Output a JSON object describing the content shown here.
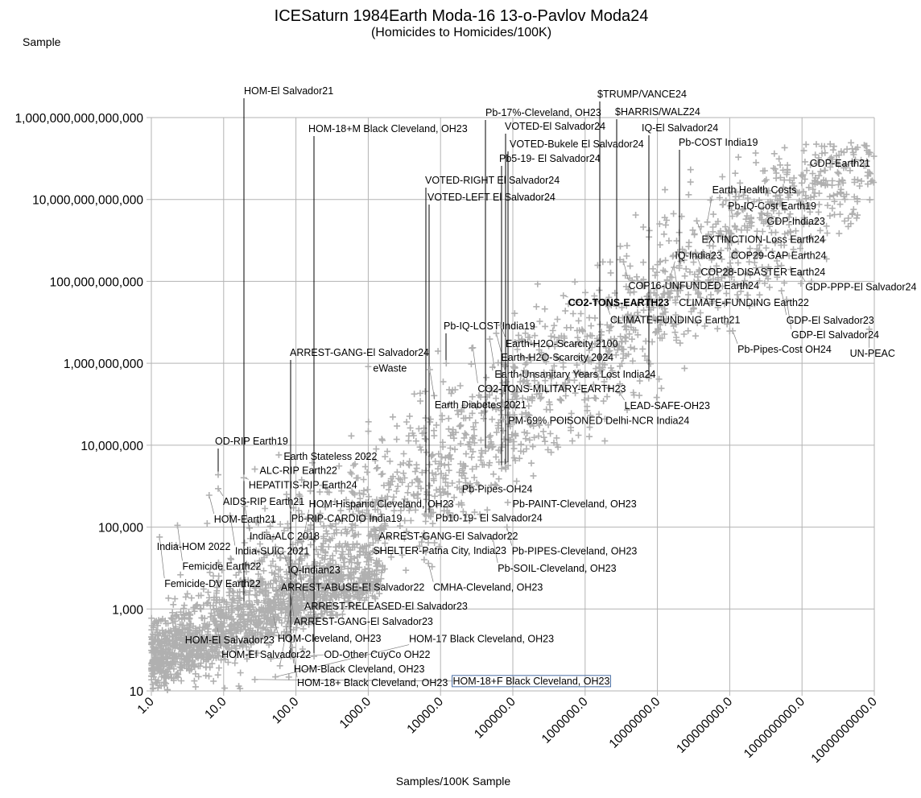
{
  "chart_data": {
    "type": "scatter",
    "title": "ICESaturn 1984Earth Moda-16 13-o-Pavlov Moda24",
    "subtitle": "(Homicides to Homicides/100K)",
    "ylabel": "Sample",
    "xlabel": "Samples/100K Sample",
    "xscale": "log",
    "yscale": "log",
    "xlim": [
      1,
      10000000000
    ],
    "ylim": [
      10,
      1000000000000000
    ],
    "grid": true,
    "marker": "plus",
    "marker_color": "#b0b0b0",
    "leader_color": "#000000",
    "highlight_color": "#4a6fa5",
    "background_point_count": 3200,
    "x_ticks": [
      "1.0",
      "10.0",
      "100.0",
      "1000.0",
      "10000.0",
      "100000.0",
      "1000000.0",
      "10000000.0",
      "100000000.0",
      "1000000000.0",
      "10000000000.0"
    ],
    "y_ticks": [
      "10",
      "1,000",
      "100,000",
      "10,000,000",
      "1,000,000,000",
      "100,000,000,000",
      "10,000,000,000,000",
      "1,000,000,000,000,000"
    ],
    "labeled_points": [
      {
        "label": "HOM-El Salvador21",
        "x": 19,
        "y": 1300,
        "leader": true
      },
      {
        "label": "HOM-18+M Black Cleveland, OH23",
        "x": 178,
        "y": 70,
        "leader": true
      },
      {
        "label": "Pb-17%-Cleveland, OH23",
        "x": 42000,
        "y": 7200000,
        "leader": true
      },
      {
        "label": "VOTED-El Salvador24",
        "x": 79000,
        "y": 2900000,
        "leader": true
      },
      {
        "label": "VOTED-Bukele El Salvador24",
        "x": 86000,
        "y": 3200000,
        "leader": true
      },
      {
        "label": "Pb5-19- El Salvador24",
        "x": 70000,
        "y": 2700000,
        "leader": true
      },
      {
        "label": "$TRUMP/VANCE24",
        "x": 1600000,
        "y": 1000000000,
        "leader": true
      },
      {
        "label": "$HARRIS/WALZ24",
        "x": 2700000,
        "y": 25000000000,
        "leader": true
      },
      {
        "label": "IQ-El Salvador24",
        "x": 7600000,
        "y": 430000000,
        "leader": true
      },
      {
        "label": "Pb-COST India19",
        "x": 20000000,
        "y": 240000000000,
        "leader": true
      },
      {
        "label": "VOTED-RIGHT El Salvador24",
        "x": 6300,
        "y": 190000,
        "leader": true
      },
      {
        "label": "VOTED-LEFT El Salvador24",
        "x": 6900,
        "y": 190000,
        "leader": true
      },
      {
        "label": "ARREST-GANG-El Salvador24",
        "x": 85,
        "y": 70,
        "leader": true
      },
      {
        "label": "OD-RIP Earth19",
        "x": 8.4,
        "y": 1900000,
        "leader": true
      },
      {
        "label": "Pb-IQ-LOST India19",
        "x": 12000,
        "y": 1000000000,
        "leader": true
      },
      {
        "label": "GDP-Earth21",
        "x": 1100000000,
        "y": 83000000000000
      },
      {
        "label": "Pb-IQ-Cost Earth19",
        "x": 81000000,
        "y": 7600000000000
      },
      {
        "label": "GDP-India23",
        "x": 280000000,
        "y": 4400000000000
      },
      {
        "label": "EXTINCTION-Loss Earth24",
        "x": 35000000,
        "y": 3000000000000
      },
      {
        "label": "Earth Health Costs",
        "x": 49000000,
        "y": 2800000000000
      },
      {
        "label": "COP29-GAP Earth24",
        "x": 89000000,
        "y": 1200000000000
      },
      {
        "label": "COP28-DISASTER Earth24",
        "x": 34000000,
        "y": 480000000000
      },
      {
        "label": "COP16-UNFUNDED Earth24",
        "x": 3400000,
        "y": 300000000000
      },
      {
        "label": "CLIMATE-FUNDING Earth22",
        "x": 17000000,
        "y": 220000000000
      },
      {
        "label": "IQ-India23",
        "x": 15000000,
        "y": 130000000000
      },
      {
        "label": "GDP-PPP-El Salvador24",
        "x": 950000000,
        "y": 150000000000
      },
      {
        "label": "CO2-TONS-EARTH23",
        "x": 500000,
        "y": 45000000000,
        "bold": true
      },
      {
        "label": "CLIMATE-FUNDING Earth21",
        "x": 1900000,
        "y": 32000000000
      },
      {
        "label": "GDP-El Salvador23",
        "x": 520000000,
        "y": 59000000000
      },
      {
        "label": "GDP-El Salvador24",
        "x": 610000000,
        "y": 36000000000
      },
      {
        "label": "Pb-Pipes-Cost OH24",
        "x": 110000000,
        "y": 6200000000
      },
      {
        "label": "UN-PEAC",
        "x": 8500000000,
        "y": 6800000000
      },
      {
        "label": "Earth-H2O-Scarcity 2100",
        "x": 68000,
        "y": 8500000000
      },
      {
        "label": "Earth-H2O-Scarcity 2024",
        "x": 59000,
        "y": 5400000000
      },
      {
        "label": "Earth-Unsanitary Years Lost India24",
        "x": 48000,
        "y": 3900000000
      },
      {
        "label": "CO2-TONS-MILITARY-EARTH23",
        "x": 28000,
        "y": 2400000000
      },
      {
        "label": "PM-69% POISONED Delhi-NCR India24",
        "x": 74000,
        "y": 43000000
      },
      {
        "label": "LEAD-SAFE-OH23",
        "x": 3000000,
        "y": 190000000
      },
      {
        "label": "eWaste",
        "x": 1000,
        "y": 830000000
      },
      {
        "label": "Earth Diabetes 2021",
        "x": 7100,
        "y": 700000000
      },
      {
        "label": "Earth Stateless 2022",
        "x": 58,
        "y": 5800000
      },
      {
        "label": "ALC-RIP Earth22",
        "x": 27,
        "y": 2600000
      },
      {
        "label": "HEPATITIS-RIP Earth24",
        "x": 19,
        "y": 1600000
      },
      {
        "label": "AIDS-RIP Earth21",
        "x": 8.4,
        "y": 870000
      },
      {
        "label": "HOM-Earth21",
        "x": 6.3,
        "y": 600000
      },
      {
        "label": "Pb-RIP-CARDIO India19",
        "x": 74,
        "y": 630000
      },
      {
        "label": "India-ALC 2018",
        "x": 19.6,
        "y": 320000
      },
      {
        "label": "India-SUIC 2021",
        "x": 12.3,
        "y": 190000
      },
      {
        "label": "Femicide Earth22",
        "x": 2.3,
        "y": 110000
      },
      {
        "label": "Femicide-DV Earth22",
        "x": 1.3,
        "y": 57000
      },
      {
        "label": "India-HOM 2022",
        "x": 2.2,
        "y": 36000
      },
      {
        "label": "IQ-Indian23",
        "x": 66,
        "y": 25000
      },
      {
        "label": "Pb-Pipes-OH24",
        "x": 17000,
        "y": 930000
      },
      {
        "label": "Pb-PAINT-Cleveland, OH23",
        "x": 85000,
        "y": 400000
      },
      {
        "label": "Pb10-19- El Salvador24",
        "x": 7300,
        "y": 180000
      },
      {
        "label": "ARREST-GANG-El Salvador22",
        "x": 1200,
        "y": 90000
      },
      {
        "label": "Pb-PIPES-Cleveland, OH23",
        "x": 83000,
        "y": 100000
      },
      {
        "label": "Pb-SOIL-Cleveland, OH23",
        "x": 53000,
        "y": 52000
      },
      {
        "label": "SHELTER-Patna City, India23",
        "x": 1000,
        "y": 21000
      },
      {
        "label": "CMHA-Cleveland, OH23",
        "x": 6800,
        "y": 13000
      },
      {
        "label": "ARREST-RELEASED-El Salvador23",
        "x": 112,
        "y": 8500
      },
      {
        "label": "ARREST-GANG-El Salvador23",
        "x": 80,
        "y": 4900
      },
      {
        "label": "ARREST-ABUSE-El Salvador22",
        "x": 53,
        "y": 2700
      },
      {
        "label": "HOM-Cleveland, OH23",
        "x": 48,
        "y": 740
      },
      {
        "label": "HOM-El Salvador22",
        "x": 8.0,
        "y": 410
      },
      {
        "label": "HOM-El Salvador23",
        "x": 2.5,
        "y": 190
      },
      {
        "label": "HOM-Black Cleveland, OH23",
        "x": 80,
        "y": 250
      },
      {
        "label": "HOM-18+ Black Cleveland, OH23",
        "x": 89,
        "y": 115
      },
      {
        "label": "OD-Other CuyCo OH22",
        "x": 45,
        "y": 61
      },
      {
        "label": "HOM-Hispanic Cleveland, OH23",
        "x": 60,
        "y": 41
      },
      {
        "label": "HOM-17 Black Cleveland, OH23",
        "x": 52,
        "y": 22
      },
      {
        "label": "HOM-18+F Black Cleveland, OH23",
        "x": 27,
        "y": 19,
        "boxed": true
      }
    ]
  }
}
